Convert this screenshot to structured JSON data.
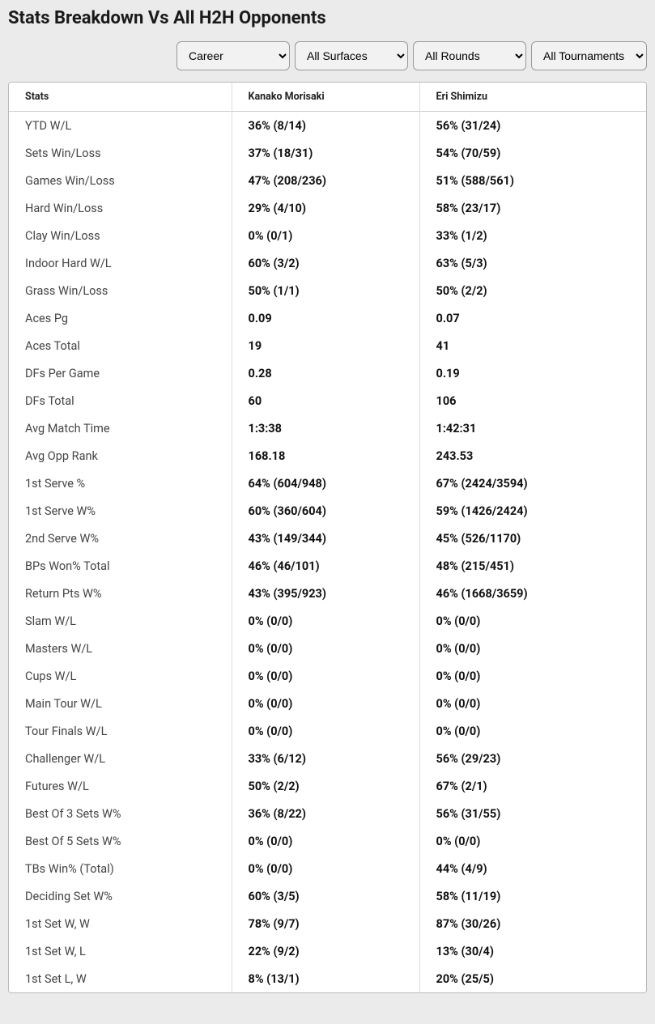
{
  "title": "Stats Breakdown Vs All H2H Opponents",
  "filters": {
    "period": {
      "selected": "Career",
      "options": [
        "Career"
      ]
    },
    "surface": {
      "selected": "All Surfaces",
      "options": [
        "All Surfaces"
      ]
    },
    "round": {
      "selected": "All Rounds",
      "options": [
        "All Rounds"
      ]
    },
    "tournament": {
      "selected": "All Tournaments",
      "options": [
        "All Tournaments"
      ]
    }
  },
  "columns": {
    "stats": "Stats",
    "player1": "Kanako Morisaki",
    "player2": "Eri Shimizu"
  },
  "rows": [
    {
      "label": "YTD W/L",
      "p1": "36% (8/14)",
      "p2": "56% (31/24)"
    },
    {
      "label": "Sets Win/Loss",
      "p1": "37% (18/31)",
      "p2": "54% (70/59)"
    },
    {
      "label": "Games Win/Loss",
      "p1": "47% (208/236)",
      "p2": "51% (588/561)"
    },
    {
      "label": "Hard Win/Loss",
      "p1": "29% (4/10)",
      "p2": "58% (23/17)"
    },
    {
      "label": "Clay Win/Loss",
      "p1": "0% (0/1)",
      "p2": "33% (1/2)"
    },
    {
      "label": "Indoor Hard W/L",
      "p1": "60% (3/2)",
      "p2": "63% (5/3)"
    },
    {
      "label": "Grass Win/Loss",
      "p1": "50% (1/1)",
      "p2": "50% (2/2)"
    },
    {
      "label": "Aces Pg",
      "p1": "0.09",
      "p2": "0.07"
    },
    {
      "label": "Aces Total",
      "p1": "19",
      "p2": "41"
    },
    {
      "label": "DFs Per Game",
      "p1": "0.28",
      "p2": "0.19"
    },
    {
      "label": "DFs Total",
      "p1": "60",
      "p2": "106"
    },
    {
      "label": "Avg Match Time",
      "p1": "1:3:38",
      "p2": "1:42:31"
    },
    {
      "label": "Avg Opp Rank",
      "p1": "168.18",
      "p2": "243.53"
    },
    {
      "label": "1st Serve %",
      "p1": "64% (604/948)",
      "p2": "67% (2424/3594)"
    },
    {
      "label": "1st Serve W%",
      "p1": "60% (360/604)",
      "p2": "59% (1426/2424)"
    },
    {
      "label": "2nd Serve W%",
      "p1": "43% (149/344)",
      "p2": "45% (526/1170)"
    },
    {
      "label": "BPs Won% Total",
      "p1": "46% (46/101)",
      "p2": "48% (215/451)"
    },
    {
      "label": "Return Pts W%",
      "p1": "43% (395/923)",
      "p2": "46% (1668/3659)"
    },
    {
      "label": "Slam W/L",
      "p1": "0% (0/0)",
      "p2": "0% (0/0)"
    },
    {
      "label": "Masters W/L",
      "p1": "0% (0/0)",
      "p2": "0% (0/0)"
    },
    {
      "label": "Cups W/L",
      "p1": "0% (0/0)",
      "p2": "0% (0/0)"
    },
    {
      "label": "Main Tour W/L",
      "p1": "0% (0/0)",
      "p2": "0% (0/0)"
    },
    {
      "label": "Tour Finals W/L",
      "p1": "0% (0/0)",
      "p2": "0% (0/0)"
    },
    {
      "label": "Challenger W/L",
      "p1": "33% (6/12)",
      "p2": "56% (29/23)"
    },
    {
      "label": "Futures W/L",
      "p1": "50% (2/2)",
      "p2": "67% (2/1)"
    },
    {
      "label": "Best Of 3 Sets W%",
      "p1": "36% (8/22)",
      "p2": "56% (31/55)"
    },
    {
      "label": "Best Of 5 Sets W%",
      "p1": "0% (0/0)",
      "p2": "0% (0/0)"
    },
    {
      "label": "TBs Win% (Total)",
      "p1": "0% (0/0)",
      "p2": "44% (4/9)"
    },
    {
      "label": "Deciding Set W%",
      "p1": "60% (3/5)",
      "p2": "58% (11/19)"
    },
    {
      "label": "1st Set W, W",
      "p1": "78% (9/7)",
      "p2": "87% (30/26)"
    },
    {
      "label": "1st Set W, L",
      "p1": "22% (9/2)",
      "p2": "13% (30/4)"
    },
    {
      "label": "1st Set L, W",
      "p1": "8% (13/1)",
      "p2": "20% (25/5)"
    }
  ]
}
